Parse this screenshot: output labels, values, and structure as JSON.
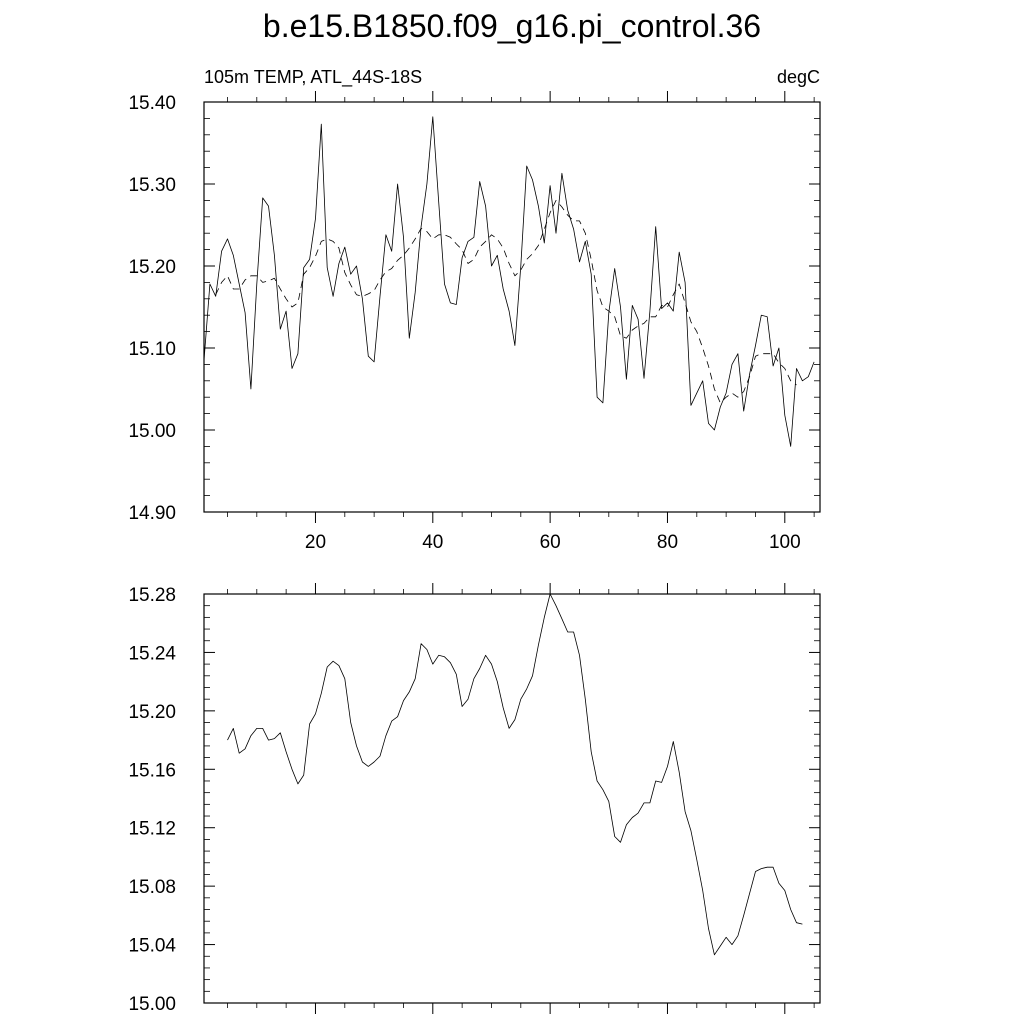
{
  "title": "b.e15.B1850.f09_g16.pi_control.36",
  "chart_data": [
    {
      "type": "line",
      "left_label": "105m TEMP, ATL_44S-18S",
      "right_label": "degC",
      "xlim": [
        1,
        106
      ],
      "ylim": [
        14.9,
        15.4
      ],
      "x_ticks": [
        20,
        40,
        60,
        80,
        100
      ],
      "y_ticks": [
        "14.90",
        "15.00",
        "15.10",
        "15.20",
        "15.30",
        "15.40"
      ],
      "x_tick_labels_shown": true,
      "series": [
        {
          "style": "solid",
          "x_start": 1,
          "values": [
            15.085,
            15.178,
            15.163,
            15.218,
            15.233,
            15.213,
            15.178,
            15.143,
            15.05,
            15.178,
            15.283,
            15.273,
            15.213,
            15.123,
            15.145,
            15.075,
            15.093,
            15.198,
            15.208,
            15.258,
            15.373,
            15.198,
            15.163,
            15.203,
            15.223,
            15.19,
            15.2,
            15.16,
            15.09,
            15.083,
            15.163,
            15.238,
            15.218,
            15.3,
            15.235,
            15.112,
            15.168,
            15.248,
            15.3,
            15.382,
            15.278,
            15.178,
            15.155,
            15.153,
            15.21,
            15.23,
            15.235,
            15.303,
            15.273,
            15.2,
            15.213,
            15.172,
            15.145,
            15.103,
            15.2,
            15.322,
            15.305,
            15.273,
            15.228,
            15.298,
            15.24,
            15.313,
            15.268,
            15.245,
            15.205,
            15.23,
            15.19,
            15.04,
            15.033,
            15.143,
            15.197,
            15.15,
            15.062,
            15.152,
            15.135,
            15.063,
            15.145,
            15.248,
            15.148,
            15.155,
            15.145,
            15.217,
            15.18,
            15.03,
            15.045,
            15.06,
            15.008,
            15.0,
            15.028,
            15.045,
            15.08,
            15.093,
            15.023,
            15.068,
            15.103,
            15.14,
            15.138,
            15.078,
            15.1,
            15.018,
            14.98,
            15.075,
            15.06,
            15.065,
            15.083
          ]
        },
        {
          "style": "dashed",
          "x_start": 3,
          "values": [
            15.165,
            15.18,
            15.188,
            15.172,
            15.172,
            15.183,
            15.188,
            15.188,
            15.18,
            15.182,
            15.185,
            15.172,
            15.16,
            15.15,
            15.155,
            15.19,
            15.198,
            15.212,
            15.23,
            15.233,
            15.23,
            15.222,
            15.192,
            15.177,
            15.165,
            15.163,
            15.166,
            15.17,
            15.183,
            15.193,
            15.197,
            15.207,
            15.213,
            15.222,
            15.233,
            15.246,
            15.242,
            15.233,
            15.238,
            15.238,
            15.235,
            15.227,
            15.22,
            15.203,
            15.208,
            15.223,
            15.23,
            15.238,
            15.233,
            15.222,
            15.203,
            15.188,
            15.195,
            15.208,
            15.215,
            15.225,
            15.245,
            15.265,
            15.28,
            15.272,
            15.262,
            15.255,
            15.255,
            15.24,
            15.208,
            15.17,
            15.15,
            15.145,
            15.138,
            15.115,
            15.112,
            15.122,
            15.127,
            15.13,
            15.138,
            15.138,
            15.152,
            15.15,
            15.165,
            15.178,
            15.155,
            15.132,
            15.12,
            15.1,
            15.078,
            15.05,
            15.033,
            15.04,
            15.045,
            15.04,
            15.047,
            15.065,
            15.09,
            15.093,
            15.093,
            15.093,
            15.082,
            15.075,
            15.06,
            15.055
          ]
        }
      ]
    },
    {
      "type": "line",
      "xlim": [
        1,
        106
      ],
      "ylim": [
        15.0,
        15.28
      ],
      "x_ticks": [
        20,
        40,
        60,
        80,
        100
      ],
      "y_ticks": [
        "15.00",
        "15.04",
        "15.08",
        "15.12",
        "15.16",
        "15.20",
        "15.24",
        "15.28"
      ],
      "x_tick_labels_shown": false,
      "series": [
        {
          "style": "solid",
          "x_start": 5,
          "values": [
            15.18,
            15.188,
            15.171,
            15.174,
            15.183,
            15.188,
            15.188,
            15.18,
            15.181,
            15.185,
            15.172,
            15.16,
            15.15,
            15.156,
            15.191,
            15.198,
            15.212,
            15.23,
            15.234,
            15.231,
            15.222,
            15.192,
            15.176,
            15.165,
            15.162,
            15.165,
            15.169,
            15.183,
            15.193,
            15.196,
            15.207,
            15.213,
            15.222,
            15.246,
            15.242,
            15.232,
            15.238,
            15.237,
            15.233,
            15.225,
            15.203,
            15.208,
            15.222,
            15.229,
            15.238,
            15.232,
            15.22,
            15.202,
            15.188,
            15.194,
            15.208,
            15.215,
            15.224,
            15.245,
            15.264,
            15.28,
            15.272,
            15.263,
            15.254,
            15.254,
            15.238,
            15.208,
            15.172,
            15.152,
            15.146,
            15.138,
            15.114,
            15.11,
            15.122,
            15.127,
            15.13,
            15.137,
            15.137,
            15.152,
            15.151,
            15.162,
            15.179,
            15.158,
            15.131,
            15.118,
            15.098,
            15.077,
            15.051,
            15.033,
            15.039,
            15.045,
            15.04,
            15.046,
            15.06,
            15.075,
            15.09,
            15.092,
            15.093,
            15.093,
            15.082,
            15.077,
            15.064,
            15.055,
            15.054
          ]
        }
      ]
    }
  ]
}
